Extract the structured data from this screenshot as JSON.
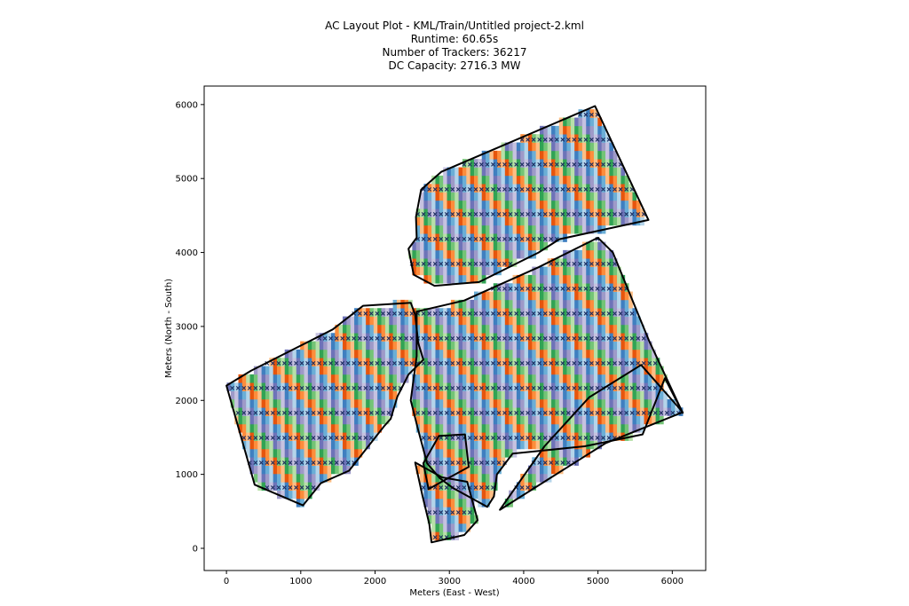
{
  "chart_data": {
    "type": "scatter",
    "title_lines": [
      "AC Layout Plot - KML/Train/Untitled project-2.kml",
      "Runtime: 60.65s",
      "Number of Trackers: 36217",
      "DC Capacity: 2716.3 MW"
    ],
    "xlabel": "Meters (East - West)",
    "ylabel": "Meters (North - South)",
    "xlim": [
      -300,
      6450
    ],
    "ylim": [
      -300,
      6250
    ],
    "xticks": [
      0,
      1000,
      2000,
      3000,
      4000,
      5000,
      6000
    ],
    "yticks": [
      0,
      1000,
      2000,
      3000,
      4000,
      5000,
      6000
    ],
    "grid": false,
    "legend": "none",
    "block_palette": [
      "#6e73b8",
      "#9e9ac8",
      "#c6c2e0",
      "#3f7fc0",
      "#6baed6",
      "#b4d4ea",
      "#e6550d",
      "#fd8d3c",
      "#fdbe85",
      "#31a354",
      "#74c476",
      "#b7e0a8"
    ],
    "marker_color": "#1a2a5e",
    "boundary_color": "#000000",
    "site_boundaries": [
      [
        [
          0,
          2200
        ],
        [
          330,
          2400
        ],
        [
          1430,
          2960
        ],
        [
          1840,
          3280
        ],
        [
          2480,
          3320
        ],
        [
          2540,
          3160
        ],
        [
          2580,
          2780
        ],
        [
          2650,
          2550
        ],
        [
          2450,
          2350
        ],
        [
          2300,
          2050
        ],
        [
          2210,
          1750
        ],
        [
          2120,
          1650
        ],
        [
          1650,
          1050
        ],
        [
          1270,
          880
        ],
        [
          1030,
          580
        ],
        [
          380,
          860
        ],
        [
          0,
          2200
        ]
      ],
      [
        [
          2890,
          5090
        ],
        [
          4960,
          5980
        ],
        [
          5680,
          4440
        ],
        [
          4480,
          4180
        ],
        [
          4200,
          4000
        ],
        [
          3400,
          3600
        ],
        [
          2800,
          3550
        ],
        [
          2520,
          3700
        ],
        [
          2450,
          4050
        ],
        [
          2560,
          4200
        ],
        [
          2550,
          4480
        ],
        [
          2620,
          4850
        ],
        [
          2890,
          5090
        ]
      ],
      [
        [
          2560,
          3200
        ],
        [
          3200,
          3350
        ],
        [
          4200,
          3800
        ],
        [
          5000,
          4200
        ],
        [
          5200,
          4000
        ],
        [
          5690,
          2800
        ],
        [
          6140,
          1830
        ],
        [
          5900,
          2300
        ],
        [
          5600,
          1540
        ],
        [
          4820,
          1380
        ],
        [
          3850,
          1280
        ],
        [
          3640,
          1000
        ],
        [
          3600,
          700
        ],
        [
          3510,
          560
        ],
        [
          3040,
          820
        ],
        [
          2870,
          950
        ],
        [
          2700,
          1150
        ],
        [
          2580,
          1600
        ],
        [
          2480,
          2000
        ],
        [
          2560,
          2600
        ],
        [
          2560,
          3200
        ]
      ],
      [
        [
          3680,
          520
        ],
        [
          4280,
          1380
        ],
        [
          4880,
          2040
        ],
        [
          5580,
          2480
        ],
        [
          6140,
          1840
        ],
        [
          5100,
          1420
        ],
        [
          3680,
          520
        ]
      ],
      [
        [
          2650,
          1150
        ],
        [
          2860,
          1520
        ],
        [
          3210,
          1540
        ],
        [
          3260,
          1100
        ],
        [
          2950,
          930
        ],
        [
          2720,
          800
        ],
        [
          2650,
          1150
        ]
      ],
      [
        [
          2540,
          1160
        ],
        [
          2640,
          700
        ],
        [
          2730,
          330
        ],
        [
          2760,
          80
        ],
        [
          3200,
          180
        ],
        [
          3380,
          380
        ],
        [
          3240,
          900
        ],
        [
          2900,
          960
        ],
        [
          2540,
          1160
        ]
      ]
    ]
  }
}
